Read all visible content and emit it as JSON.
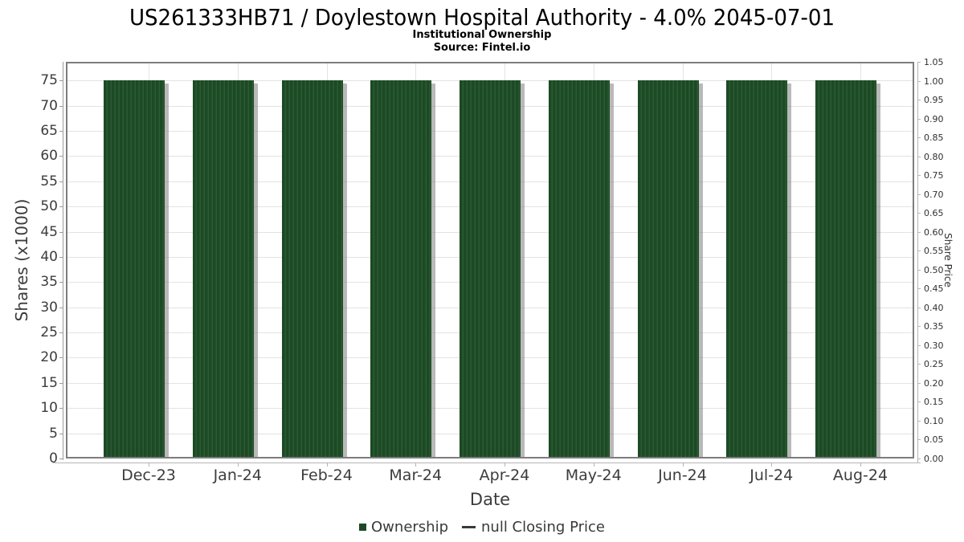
{
  "header": {
    "title": "US261333HB71 / Doylestown Hospital Authority - 4.0% 2045-07-01",
    "subtitle": "Institutional Ownership",
    "source": "Source: Fintel.io"
  },
  "chart_data": {
    "type": "bar",
    "title": "US261333HB71 / Doylestown Hospital Authority - 4.0% 2045-07-01",
    "subtitle": "Institutional Ownership",
    "source": "Source: Fintel.io",
    "categories": [
      "Dec-23",
      "Jan-24",
      "Feb-24",
      "Mar-24",
      "Apr-24",
      "May-24",
      "Jun-24",
      "Jul-24",
      "Aug-24"
    ],
    "series": [
      {
        "name": "Ownership",
        "type": "bar",
        "color": "#1b4a24",
        "values": [
          75,
          75,
          75,
          75,
          75,
          75,
          75,
          75,
          75
        ],
        "units": "shares x1000"
      },
      {
        "name": "null Closing Price",
        "type": "line",
        "color": "#3a3a3a",
        "values": [
          null,
          null,
          null,
          null,
          null,
          null,
          null,
          null,
          null
        ]
      }
    ],
    "xlabel": "Date",
    "y_left": {
      "label": "Shares (x1000)",
      "lim": [
        0,
        78.7
      ],
      "ticks": [
        0,
        5,
        10,
        15,
        20,
        25,
        30,
        35,
        40,
        45,
        50,
        55,
        60,
        65,
        70,
        75
      ]
    },
    "y_right": {
      "label": "Share Price",
      "lim": [
        0,
        1.05
      ],
      "ticks": [
        "0.00",
        "0.05",
        "0.10",
        "0.15",
        "0.20",
        "0.25",
        "0.30",
        "0.35",
        "0.40",
        "0.45",
        "0.50",
        "0.55",
        "0.60",
        "0.65",
        "0.70",
        "0.75",
        "0.80",
        "0.85",
        "0.90",
        "0.95",
        "1.00",
        "1.05"
      ]
    },
    "grid": true,
    "legend_position": "bottom"
  },
  "legend": {
    "items": [
      {
        "label": "Ownership",
        "marker": "square",
        "color": "#1d4a26"
      },
      {
        "label": "null Closing Price",
        "marker": "line",
        "color": "#3a3a3a"
      }
    ]
  },
  "colors": {
    "bar_fill": "#1b4a24",
    "bar_stripe": "#2c5a33",
    "bar_shadow": "rgba(128,128,128,0.55)",
    "grid": "#e3e3e3",
    "plot_border": "#7d7d7d",
    "axis_line": "#9b9b9b",
    "axis_line_light": "#b5b5b5",
    "tick_text": "#3c3c3c"
  }
}
